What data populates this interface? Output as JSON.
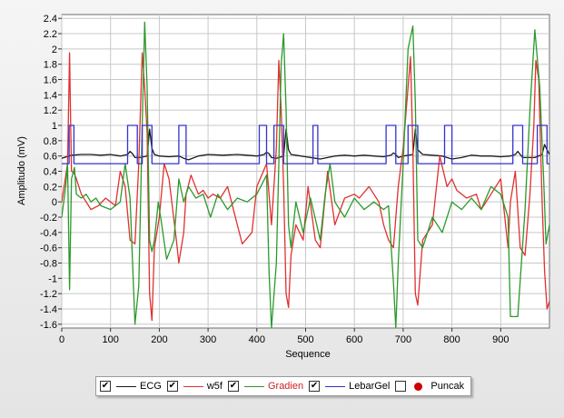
{
  "chart_data": {
    "type": "line",
    "xlabel": "Sequence",
    "ylabel": "Amplitudo (mV)",
    "xlim": [
      0,
      1000
    ],
    "ylim": [
      -1.65,
      2.45
    ],
    "xticks": [
      0,
      100,
      200,
      300,
      400,
      500,
      600,
      700,
      800,
      900
    ],
    "yticks": [
      -1.6,
      -1.4,
      -1.2,
      -1,
      -0.8,
      -0.6,
      -0.4,
      -0.2,
      0,
      0.2,
      0.4,
      0.6,
      0.8,
      1,
      1.2,
      1.4,
      1.6,
      1.8,
      2,
      2.2,
      2.4
    ],
    "ytick_labels": [
      "-1.6",
      "-1.4",
      "-1.2",
      "-1",
      "-0.8",
      "-0.6",
      "-0.4",
      "-0.2",
      "0",
      "0.2",
      "0.4",
      "0.6",
      "0.8",
      "1",
      "1.2",
      "1.4",
      "1.6",
      "1.8",
      "2",
      "2.2",
      "2.4"
    ],
    "grid": true,
    "legend_position": "bottom",
    "series": [
      {
        "name": "ECG",
        "color": "#1a1a1a",
        "checked": true,
        "x": [
          0,
          20,
          40,
          60,
          80,
          100,
          120,
          135,
          140,
          145,
          150,
          160,
          175,
          180,
          185,
          190,
          200,
          220,
          240,
          250,
          260,
          280,
          300,
          330,
          360,
          380,
          400,
          415,
          420,
          425,
          430,
          440,
          455,
          460,
          465,
          470,
          480,
          500,
          520,
          530,
          545,
          560,
          580,
          600,
          620,
          640,
          660,
          675,
          680,
          685,
          690,
          700,
          720,
          725,
          730,
          740,
          760,
          780,
          790,
          800,
          820,
          840,
          860,
          880,
          900,
          920,
          930,
          935,
          940,
          945,
          950,
          970,
          985,
          990,
          995,
          1000
        ],
        "y": [
          0.57,
          0.61,
          0.62,
          0.62,
          0.61,
          0.62,
          0.6,
          0.62,
          0.66,
          0.63,
          0.58,
          0.58,
          0.6,
          0.95,
          0.7,
          0.62,
          0.6,
          0.59,
          0.6,
          0.57,
          0.55,
          0.6,
          0.62,
          0.61,
          0.62,
          0.61,
          0.6,
          0.62,
          0.65,
          0.63,
          0.58,
          0.57,
          0.6,
          0.95,
          0.68,
          0.62,
          0.61,
          0.59,
          0.57,
          0.56,
          0.58,
          0.6,
          0.61,
          0.6,
          0.61,
          0.6,
          0.59,
          0.61,
          0.64,
          0.62,
          0.58,
          0.6,
          0.62,
          0.95,
          0.68,
          0.62,
          0.61,
          0.6,
          0.58,
          0.56,
          0.58,
          0.61,
          0.6,
          0.6,
          0.59,
          0.6,
          0.62,
          0.66,
          0.62,
          0.58,
          0.58,
          0.58,
          0.62,
          0.75,
          0.68,
          0.62
        ]
      },
      {
        "name": "w5f",
        "color": "#e03030",
        "checked": true,
        "x": [
          0,
          12,
          16,
          18,
          20,
          25,
          30,
          40,
          60,
          75,
          90,
          110,
          120,
          130,
          140,
          150,
          158,
          165,
          170,
          175,
          180,
          185,
          190,
          195,
          200,
          210,
          220,
          235,
          240,
          250,
          255,
          265,
          280,
          290,
          300,
          310,
          325,
          340,
          360,
          370,
          390,
          400,
          420,
          430,
          440,
          445,
          450,
          455,
          460,
          465,
          470,
          480,
          495,
          505,
          520,
          530,
          545,
          560,
          580,
          600,
          610,
          630,
          650,
          660,
          670,
          680,
          690,
          700,
          710,
          715,
          720,
          725,
          730,
          740,
          760,
          775,
          790,
          800,
          810,
          830,
          850,
          860,
          880,
          900,
          915,
          920,
          930,
          940,
          950,
          960,
          968,
          972,
          978,
          985,
          990,
          995,
          1000
        ],
        "y": [
          0,
          0.5,
          1.95,
          1.1,
          0.4,
          0.38,
          0.3,
          0.1,
          -0.1,
          -0.05,
          0.05,
          -0.05,
          0.4,
          0.2,
          -0.5,
          -0.55,
          0.5,
          1.95,
          1.5,
          0.9,
          -1.2,
          -1.55,
          -0.6,
          -0.4,
          -0.2,
          0.5,
          0.3,
          -0.5,
          -0.8,
          -0.4,
          0.1,
          0.35,
          0.1,
          0.15,
          0.05,
          0.1,
          0.05,
          0.2,
          -0.3,
          -0.55,
          -0.4,
          0.2,
          0.5,
          -0.3,
          0.7,
          1.85,
          1.2,
          0.2,
          -1.2,
          -1.38,
          -0.7,
          -0.3,
          -0.5,
          0.2,
          -0.5,
          -0.6,
          0.4,
          -0.3,
          0.05,
          0.1,
          0.05,
          0.2,
          0.0,
          -0.3,
          -0.5,
          -0.6,
          0.2,
          0.7,
          1.5,
          1.9,
          0.7,
          -1.2,
          -1.35,
          -0.5,
          -0.3,
          0.6,
          0.2,
          0.3,
          0.15,
          0.05,
          0.1,
          -0.1,
          0.1,
          0.3,
          -0.6,
          0.0,
          0.4,
          -0.6,
          -0.7,
          0.1,
          1.0,
          1.85,
          1.6,
          0.0,
          -0.9,
          -1.4,
          -1.3
        ]
      },
      {
        "name": "Gradien",
        "color": "#2a9a2a",
        "checked": true,
        "x": [
          0,
          8,
          12,
          16,
          20,
          26,
          30,
          40,
          50,
          60,
          70,
          80,
          100,
          120,
          130,
          140,
          150,
          158,
          165,
          170,
          175,
          180,
          185,
          190,
          198,
          205,
          215,
          230,
          240,
          250,
          260,
          275,
          290,
          305,
          320,
          340,
          360,
          380,
          400,
          420,
          425,
          430,
          440,
          445,
          450,
          455,
          460,
          465,
          470,
          480,
          495,
          510,
          530,
          540,
          550,
          560,
          580,
          600,
          620,
          640,
          660,
          670,
          680,
          685,
          690,
          700,
          710,
          720,
          725,
          730,
          740,
          760,
          780,
          800,
          820,
          840,
          860,
          880,
          900,
          915,
          920,
          935,
          950,
          960,
          970,
          980,
          988,
          993,
          1000
        ],
        "y": [
          -0.2,
          0.2,
          0.5,
          -1.15,
          0.3,
          0.45,
          0.1,
          0.05,
          0.1,
          0.0,
          0.05,
          -0.05,
          -0.1,
          0.0,
          0.5,
          0.05,
          -1.6,
          -1.1,
          1.0,
          2.35,
          1.5,
          -0.5,
          -0.65,
          -0.5,
          0.0,
          -0.3,
          -0.75,
          -0.5,
          0.3,
          0.0,
          0.2,
          0.05,
          0.1,
          -0.2,
          0.1,
          -0.1,
          0.05,
          0.0,
          0.1,
          0.35,
          -0.9,
          -1.65,
          -0.8,
          0.5,
          1.8,
          2.2,
          1.2,
          -0.3,
          -0.6,
          0.0,
          -0.4,
          0.05,
          -0.5,
          0.1,
          0.5,
          0.0,
          -0.2,
          0.05,
          -0.1,
          0.0,
          -0.1,
          -0.05,
          -1.05,
          -1.65,
          -0.8,
          0.5,
          2.0,
          2.3,
          1.3,
          -0.5,
          -0.6,
          -0.2,
          -0.4,
          0.0,
          -0.1,
          0.05,
          -0.1,
          0.2,
          0.1,
          -0.2,
          -1.5,
          -1.5,
          -0.1,
          1.2,
          2.25,
          1.5,
          0.3,
          -0.55,
          -0.3
        ]
      },
      {
        "name": "LebarGel",
        "color": "#3333cc",
        "checked": true,
        "x": [
          0,
          15,
          15,
          25,
          25,
          135,
          135,
          155,
          155,
          165,
          165,
          185,
          185,
          240,
          240,
          255,
          255,
          405,
          405,
          420,
          420,
          435,
          435,
          455,
          455,
          515,
          515,
          525,
          525,
          665,
          665,
          685,
          685,
          710,
          710,
          730,
          730,
          785,
          785,
          800,
          800,
          925,
          925,
          945,
          945,
          975,
          975,
          995,
          995,
          1000
        ],
        "y": [
          0.5,
          0.5,
          1,
          1,
          0.5,
          0.5,
          1,
          1,
          0.5,
          0.5,
          1,
          1,
          0.5,
          0.5,
          1,
          1,
          0.5,
          0.5,
          1,
          1,
          0.5,
          0.5,
          1,
          1,
          0.5,
          0.5,
          1,
          1,
          0.5,
          0.5,
          1,
          1,
          0.5,
          0.5,
          1,
          1,
          0.5,
          0.5,
          1,
          1,
          0.5,
          0.5,
          1,
          1,
          0.5,
          0.5,
          1,
          1,
          0.5,
          0.5
        ]
      },
      {
        "name": "Puncak",
        "color": "#cc0000",
        "checked": false,
        "marker": "circle",
        "x": [],
        "y": []
      }
    ]
  }
}
